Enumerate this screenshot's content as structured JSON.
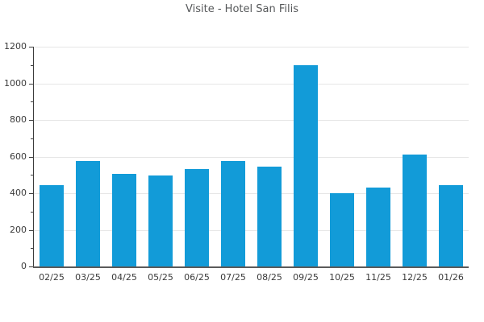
{
  "chart_data": {
    "type": "bar",
    "title": "Visite - Hotel San Filis",
    "categories": [
      "02/25",
      "03/25",
      "04/25",
      "05/25",
      "06/25",
      "07/25",
      "08/25",
      "09/25",
      "10/25",
      "11/25",
      "12/25",
      "01/26"
    ],
    "values": [
      445,
      575,
      505,
      495,
      530,
      575,
      545,
      1100,
      400,
      430,
      610,
      445
    ],
    "xlabel": "",
    "ylabel": "",
    "ylim": [
      0,
      1200
    ],
    "y_major_step": 200,
    "y_minor_step": 100,
    "y_tick_labels": [
      "0",
      "200",
      "400",
      "600",
      "800",
      "1000",
      "1200"
    ],
    "grid": true,
    "legend_position": "none",
    "colors": {
      "bar": "#129bd8",
      "grid": "#e6e6e6",
      "axis": "#3c3c3c",
      "tick_label": "#3a3a3a",
      "title": "#56585a",
      "background": "#ffffff"
    }
  }
}
